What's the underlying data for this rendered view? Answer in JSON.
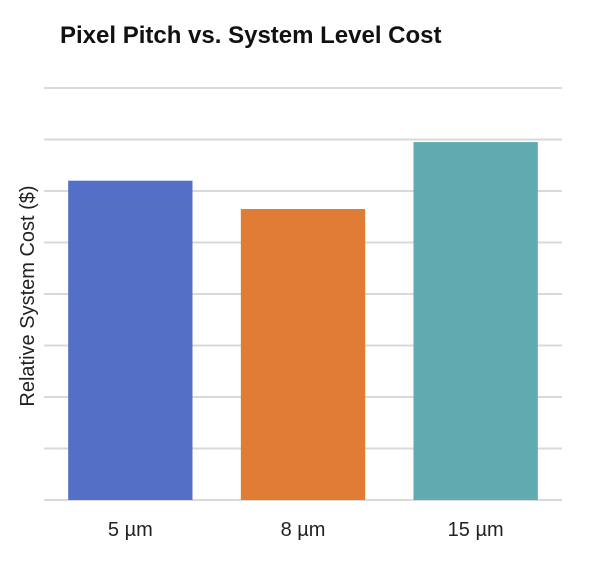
{
  "chart_data": {
    "type": "bar",
    "title": "Pixel Pitch vs. System Level Cost",
    "xlabel": "",
    "ylabel": "Relative System Cost ($)",
    "categories": [
      "5 µm",
      "8 µm",
      "15 µm"
    ],
    "values": [
      6.2,
      5.65,
      6.95
    ],
    "colors": [
      "#5470c6",
      "#e07c34",
      "#5fabb0"
    ],
    "ylim": [
      0,
      8
    ],
    "grid": true,
    "y_tick_labels_shown": false
  }
}
